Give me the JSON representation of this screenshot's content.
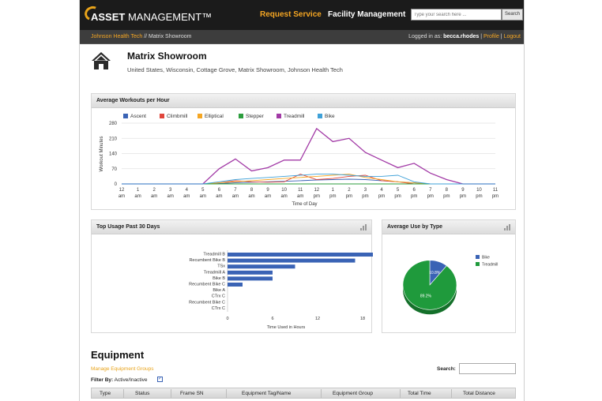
{
  "app": {
    "logo_bold": "ASSET",
    "logo_rest": "MANAGEMENT™",
    "nav": {
      "request_service": "Request Service",
      "facility_management": "Facility Management"
    },
    "search": {
      "placeholder": "Type your search here ...",
      "button": "Search"
    }
  },
  "breadcrumb": {
    "parent": "Johnson Health Tech",
    "separator": "//",
    "current": "Matrix Showroom"
  },
  "user": {
    "logged_in_as": "Logged in as:",
    "username": "becca.rhodes",
    "sep": "|",
    "profile": "Profile",
    "logout": "Logout"
  },
  "header": {
    "icon": "home-icon",
    "title": "Matrix Showroom",
    "subtitle": "United States, Wisconsin, Cottage Grove, Matrix Showroom, Johnson Health Tech"
  },
  "panels": {
    "avg_workouts": "Average Workouts per Hour",
    "top_usage": "Top Usage Past 30 Days",
    "avg_use_type": "Average Use by Type",
    "chart_icon": "bar-chart-icon"
  },
  "chart_data": [
    {
      "type": "line",
      "title": "Average Workouts per Hour",
      "xlabel": "Time of Day",
      "ylabel": "Workout Minutes",
      "x": [
        "12 am",
        "1 am",
        "2 am",
        "3 am",
        "4 am",
        "5 am",
        "6 am",
        "7 am",
        "8 am",
        "9 am",
        "10 am",
        "11 am",
        "12 pm",
        "1 pm",
        "2 pm",
        "3 pm",
        "4 pm",
        "5 pm",
        "6 pm",
        "7 pm",
        "8 pm",
        "9 pm",
        "10 pm",
        "11 pm"
      ],
      "x_ticks_top": [
        "12",
        "1",
        "2",
        "3",
        "4",
        "5",
        "6",
        "7",
        "8",
        "9",
        "10",
        "11",
        "12",
        "1",
        "2",
        "3",
        "4",
        "5",
        "6",
        "7",
        "8",
        "9",
        "10",
        "11"
      ],
      "x_ticks_bottom": [
        "am",
        "am",
        "am",
        "am",
        "am",
        "am",
        "am",
        "am",
        "am",
        "am",
        "am",
        "am",
        "pm",
        "pm",
        "pm",
        "pm",
        "pm",
        "pm",
        "pm",
        "pm",
        "pm",
        "pm",
        "pm",
        "pm"
      ],
      "ylim": [
        0,
        280
      ],
      "yticks": [
        "0",
        "70",
        "140",
        "210",
        "280"
      ],
      "grid": true,
      "legend": "top-left",
      "series": [
        {
          "name": "Ascent",
          "color": "#3a63b5",
          "values": [
            0,
            0,
            0,
            0,
            0,
            0,
            2,
            5,
            8,
            10,
            12,
            15,
            18,
            20,
            22,
            20,
            15,
            10,
            5,
            0,
            0,
            0,
            0,
            0
          ]
        },
        {
          "name": "Climbmill",
          "color": "#e0463c",
          "values": [
            0,
            0,
            0,
            0,
            0,
            0,
            5,
            15,
            10,
            8,
            10,
            45,
            20,
            25,
            35,
            40,
            15,
            10,
            0,
            0,
            0,
            0,
            0,
            0
          ]
        },
        {
          "name": "Elliptical",
          "color": "#f5a623",
          "values": [
            0,
            0,
            0,
            0,
            0,
            0,
            5,
            10,
            15,
            20,
            25,
            30,
            35,
            40,
            45,
            30,
            20,
            10,
            5,
            0,
            0,
            0,
            0,
            0
          ]
        },
        {
          "name": "Stepper",
          "color": "#2d9e3e",
          "values": [
            0,
            0,
            0,
            0,
            0,
            0,
            0,
            0,
            0,
            0,
            0,
            0,
            0,
            0,
            0,
            0,
            0,
            0,
            0,
            0,
            0,
            0,
            0,
            0
          ]
        },
        {
          "name": "Treadmill",
          "color": "#a23aa6",
          "values": [
            0,
            0,
            0,
            0,
            0,
            0,
            70,
            115,
            60,
            75,
            110,
            110,
            255,
            195,
            210,
            145,
            110,
            75,
            95,
            50,
            20,
            0,
            0,
            0
          ]
        },
        {
          "name": "Bike",
          "color": "#3fa1d8",
          "values": [
            0,
            0,
            0,
            0,
            0,
            0,
            10,
            20,
            25,
            30,
            35,
            40,
            45,
            45,
            40,
            35,
            35,
            40,
            10,
            0,
            0,
            0,
            0,
            0
          ]
        }
      ]
    },
    {
      "type": "bar",
      "orientation": "horizontal",
      "title": "Top Usage Past 30 Days",
      "xlabel": "Time Used in Hours",
      "categories": [
        "Treadmill B",
        "Recumbent Bike B",
        "TSx",
        "Treadmill A",
        "Bike B",
        "Recumbent Bike C",
        "Bike A",
        "CTrx C",
        "Recumbent Bike C",
        "CTrx C"
      ],
      "values": [
        22,
        17,
        9,
        6,
        6,
        2,
        0,
        0,
        0,
        0
      ],
      "xlim": [
        0,
        24
      ],
      "xticks": [
        "0",
        "6",
        "12",
        "18",
        "24"
      ],
      "color": "#3a63b5"
    },
    {
      "type": "pie",
      "title": "Average Use by Type",
      "slices": [
        {
          "name": "Bike",
          "value": 10.8,
          "label": "10.8%",
          "color": "#3a63b5"
        },
        {
          "name": "Treadmill",
          "value": 89.2,
          "label": "89.2%",
          "color": "#1f9a3c"
        }
      ]
    }
  ],
  "equipment": {
    "title": "Equipment",
    "manage_link": "Manage Equipment Groups",
    "filter_label": "Filter By:",
    "filter_value": "Active/Inactive",
    "filter_checked": "✓",
    "search_label": "Search:",
    "columns": [
      "Type",
      "Status",
      "Frame SN",
      "Equipment Tag/Name",
      "Equipment Group",
      "Total Time",
      "Total Distance"
    ]
  }
}
